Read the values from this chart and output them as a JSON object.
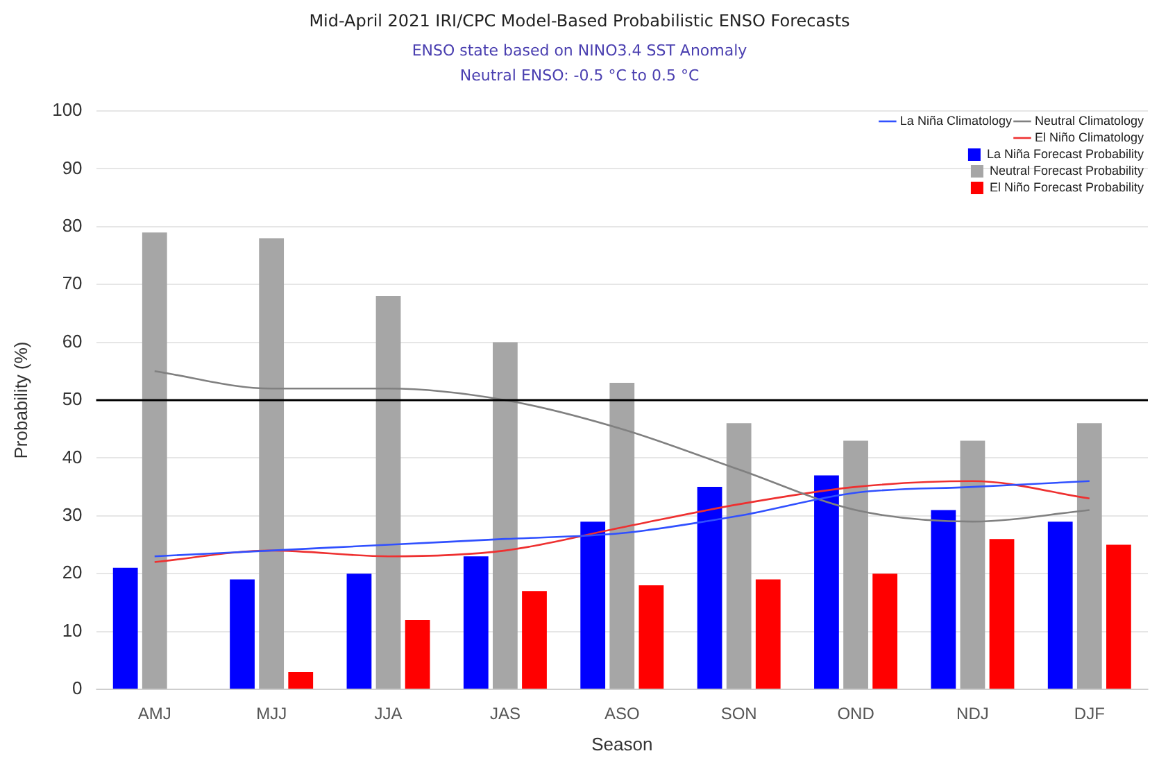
{
  "chart_data": {
    "type": "bar",
    "title": "Mid-April 2021 IRI/CPC Model-Based Probabilistic ENSO Forecasts",
    "subtitle": "ENSO state based on NINO3.4 SST Anomaly\nNeutral ENSO: -0.5 °C to 0.5 °C",
    "xlabel": "Season",
    "ylabel": "Probability (%)",
    "categories": [
      "AMJ",
      "MJJ",
      "JJA",
      "JAS",
      "ASO",
      "SON",
      "OND",
      "NDJ",
      "DJF"
    ],
    "series": [
      {
        "name": "La Niña Forecast Probability",
        "color": "#0000ff",
        "values": [
          21,
          19,
          20,
          23,
          29,
          35,
          37,
          31,
          29
        ]
      },
      {
        "name": "Neutral Forecast Probability",
        "color": "#a6a6a6",
        "values": [
          79,
          78,
          68,
          60,
          53,
          46,
          43,
          43,
          46
        ]
      },
      {
        "name": "El Niño Forecast Probability",
        "color": "#ff0000",
        "values": [
          0,
          3,
          12,
          17,
          18,
          19,
          20,
          26,
          25
        ]
      },
      {
        "name": "La Niña Climatology",
        "type": "line",
        "color": "#3050ff",
        "values": [
          23,
          24,
          25,
          26,
          27,
          30,
          34,
          35,
          36
        ]
      },
      {
        "name": "Neutral Climatology",
        "type": "line",
        "color": "#808080",
        "values": [
          55,
          52,
          52,
          50,
          45,
          38,
          31,
          29,
          31
        ]
      },
      {
        "name": "El Niño Climatology",
        "type": "line",
        "color": "#ee3030",
        "values": [
          22,
          24,
          23,
          24,
          28,
          32,
          35,
          36,
          33
        ]
      }
    ],
    "ylim": [
      0,
      100
    ],
    "yticks": [
      0,
      10,
      20,
      30,
      40,
      50,
      60,
      70,
      80,
      90,
      100
    ],
    "ref_lines": [
      {
        "axis": "y",
        "value": 50,
        "color": "#000000"
      }
    ],
    "grid": "y",
    "legend": "top right",
    "marker": "none"
  }
}
